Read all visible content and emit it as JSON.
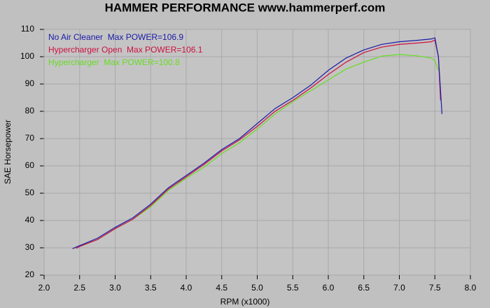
{
  "chart_data": {
    "type": "line",
    "title": "HAMMER PERFORMANCE www.hammerperf.com",
    "x_label": "RPM (x1000)",
    "y_label": "SAE Horsepower",
    "xlim": [
      2.0,
      8.0
    ],
    "ylim": [
      20,
      110
    ],
    "xticks": [
      {
        "value": 2,
        "label": "2.0"
      },
      {
        "value": 2.5,
        "label": "2.5"
      },
      {
        "value": 3,
        "label": "3.0"
      },
      {
        "value": 3.5,
        "label": "3.5"
      },
      {
        "value": 4,
        "label": "4.0"
      },
      {
        "value": 4.5,
        "label": "4.5"
      },
      {
        "value": 5,
        "label": "5.0"
      },
      {
        "value": 5.5,
        "label": "5.5"
      },
      {
        "value": 6,
        "label": "6.0"
      },
      {
        "value": 6.5,
        "label": "6.5"
      },
      {
        "value": 7,
        "label": "7.0"
      },
      {
        "value": 7.5,
        "label": "7.5"
      },
      {
        "value": 8,
        "label": "8.0"
      }
    ],
    "yticks": [
      20,
      30,
      40,
      50,
      60,
      70,
      80,
      90,
      100,
      110
    ],
    "grid": true,
    "legend": "top-left",
    "series": [
      {
        "name": "No Air Cleaner  Max POWER=106.9",
        "color": "#1a1aa8",
        "x": [
          2.4,
          2.5,
          2.75,
          3.0,
          3.25,
          3.5,
          3.75,
          4.0,
          4.25,
          4.5,
          4.75,
          5.0,
          5.25,
          5.5,
          5.75,
          6.0,
          6.25,
          6.5,
          6.75,
          7.0,
          7.25,
          7.45,
          7.5,
          7.55,
          7.6
        ],
        "values": [
          29.7,
          30.8,
          33.5,
          37.5,
          41,
          46,
          52,
          56.5,
          61,
          66,
          70,
          75.5,
          81,
          85,
          89.5,
          95,
          99.5,
          102.5,
          104.5,
          105.5,
          106,
          106.5,
          106.9,
          100,
          79
        ]
      },
      {
        "name": "Hypercharger Open  Max POWER=106.1",
        "color": "#cc1040",
        "x": [
          2.45,
          2.5,
          2.75,
          3.0,
          3.25,
          3.5,
          3.75,
          4.0,
          4.25,
          4.5,
          4.75,
          5.0,
          5.25,
          5.5,
          5.75,
          6.0,
          6.25,
          6.5,
          6.75,
          7.0,
          7.25,
          7.45,
          7.5,
          7.55,
          7.58
        ],
        "values": [
          29.8,
          30.5,
          33,
          37,
          40.5,
          45.5,
          51.5,
          56,
          60.5,
          65.5,
          69.5,
          74.5,
          80,
          84,
          88.5,
          93.5,
          98,
          101.5,
          103.5,
          104.5,
          105,
          105.5,
          106.1,
          100,
          84
        ]
      },
      {
        "name": "Hypercharger  Max POWER=100.8",
        "color": "#66dd22",
        "x": [
          2.5,
          2.75,
          3.0,
          3.25,
          3.5,
          3.75,
          4.0,
          4.25,
          4.5,
          4.75,
          5.0,
          5.25,
          5.5,
          5.75,
          6.0,
          6.25,
          6.5,
          6.75,
          7.0,
          7.25,
          7.45,
          7.5,
          7.55
        ],
        "values": [
          30.5,
          33,
          37,
          40.5,
          45,
          51,
          55.5,
          59.5,
          64.5,
          68.5,
          73.5,
          79,
          83.5,
          87.5,
          91.5,
          95.5,
          98,
          100.2,
          100.8,
          100.3,
          99.5,
          98.5,
          95
        ]
      }
    ]
  }
}
